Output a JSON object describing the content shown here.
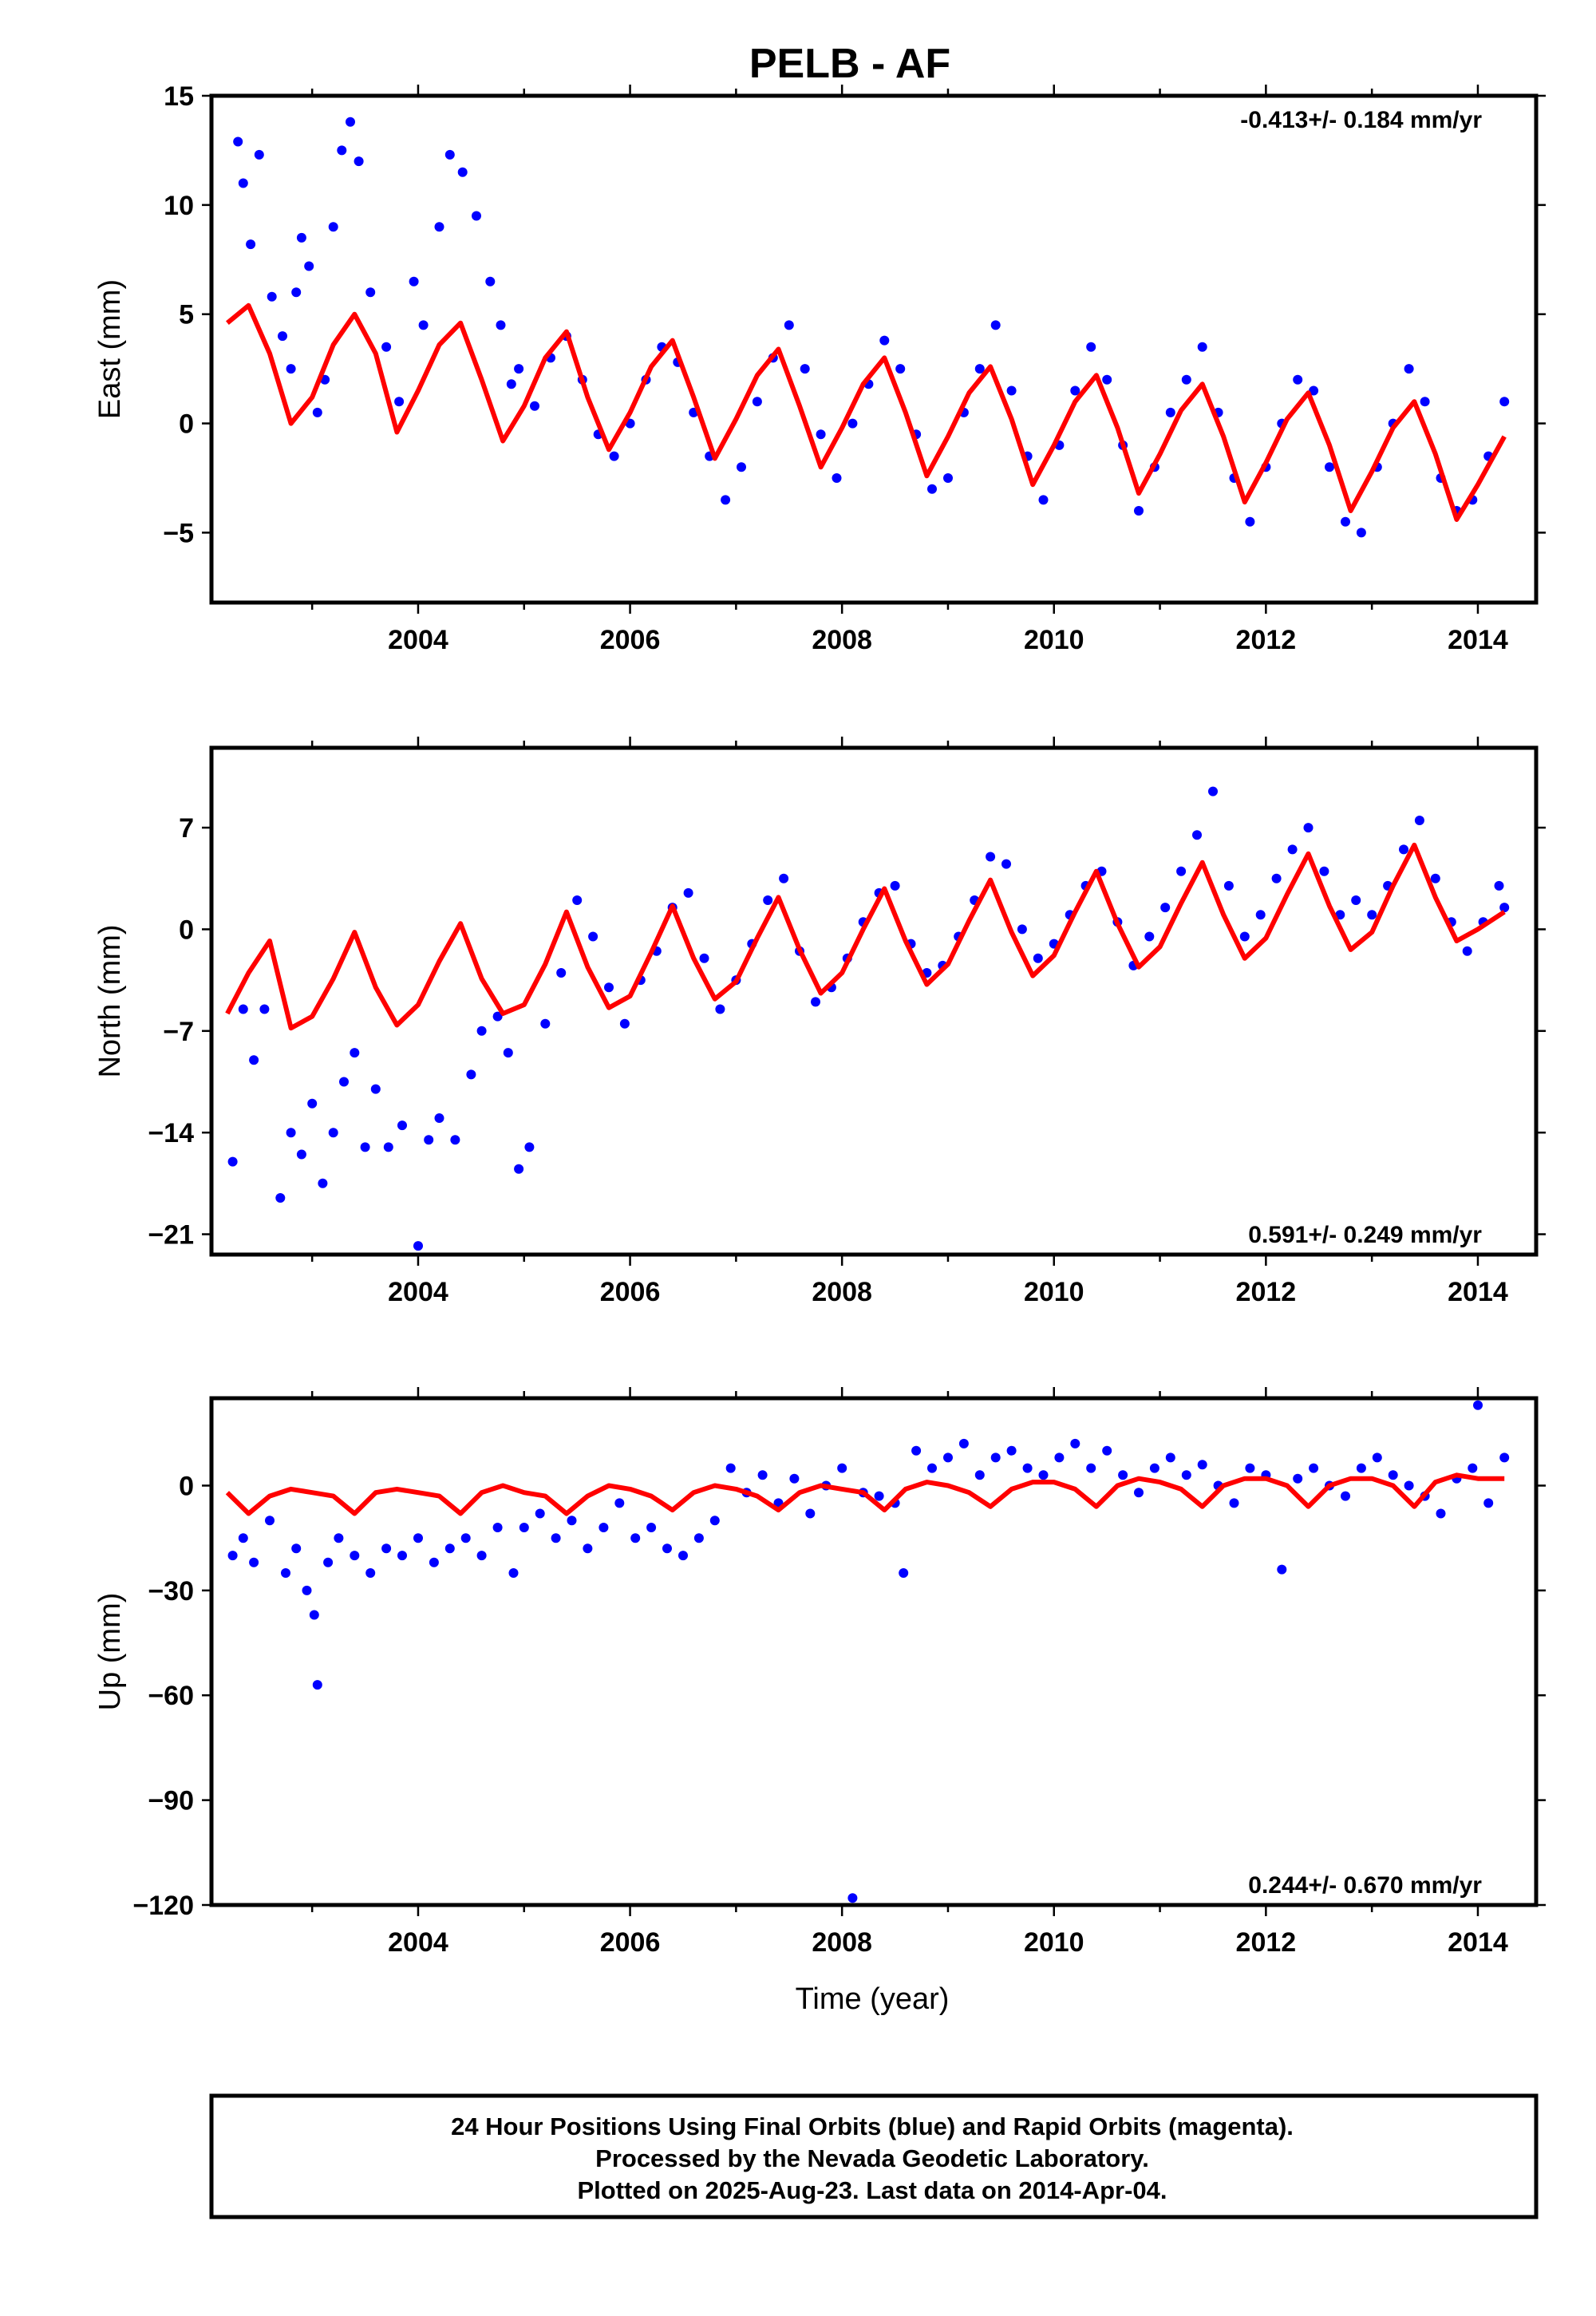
{
  "title": "PELB - AF",
  "xlabel": "Time (year)",
  "footer": {
    "lines": [
      "24 Hour Positions Using Final Orbits (blue) and Rapid Orbits (magenta).",
      "Processed by the Nevada Geodetic Laboratory.",
      "Plotted on 2025-Aug-23. Last data on 2014-Apr-04."
    ]
  },
  "colors": {
    "points": "#0000ff",
    "model": "#ff0000",
    "frame": "#000000"
  },
  "chart_data": [
    {
      "type": "scatter",
      "ylabel": "East (mm)",
      "rate_text": "-0.413+/- 0.184 mm/yr",
      "xlim": [
        2002.05,
        2014.55
      ],
      "ylim": [
        -8.2,
        15
      ],
      "xticks": [
        "2004",
        "2006",
        "2008",
        "2010",
        "2012",
        "2014"
      ],
      "yticks": [
        "-5",
        "0",
        "5",
        "10",
        "15"
      ],
      "grid": false,
      "series": [
        {
          "role": "daily positions",
          "x": [
            2002.3,
            2002.35,
            2002.42,
            2002.5,
            2002.62,
            2002.72,
            2002.8,
            2002.85,
            2002.9,
            2002.97,
            2003.05,
            2003.12,
            2003.2,
            2003.28,
            2003.36,
            2003.44,
            2003.55,
            2003.7,
            2003.82,
            2003.96,
            2004.05,
            2004.2,
            2004.3,
            2004.42,
            2004.55,
            2004.68,
            2004.78,
            2004.88,
            2004.95,
            2005.1,
            2005.25,
            2005.4,
            2005.55,
            2005.7,
            2005.85,
            2006.0,
            2006.15,
            2006.3,
            2006.45,
            2006.6,
            2006.75,
            2006.9,
            2007.05,
            2007.2,
            2007.35,
            2007.5,
            2007.65,
            2007.8,
            2007.95,
            2008.1,
            2008.25,
            2008.4,
            2008.55,
            2008.7,
            2008.85,
            2009.0,
            2009.15,
            2009.3,
            2009.45,
            2009.6,
            2009.75,
            2009.9,
            2010.05,
            2010.2,
            2010.35,
            2010.5,
            2010.65,
            2010.8,
            2010.95,
            2011.1,
            2011.25,
            2011.4,
            2011.55,
            2011.7,
            2011.85,
            2012.0,
            2012.15,
            2012.3,
            2012.45,
            2012.6,
            2012.75,
            2012.9,
            2013.05,
            2013.2,
            2013.35,
            2013.5,
            2013.65,
            2013.8,
            2013.95,
            2014.1,
            2014.25
          ],
          "y": [
            12.9,
            11.0,
            8.2,
            12.3,
            5.8,
            4.0,
            2.5,
            6.0,
            8.5,
            7.2,
            0.5,
            2.0,
            9.0,
            12.5,
            13.8,
            12.0,
            6.0,
            3.5,
            1.0,
            6.5,
            4.5,
            9.0,
            12.3,
            11.5,
            9.5,
            6.5,
            4.5,
            1.8,
            2.5,
            0.8,
            3.0,
            4.0,
            2.0,
            -0.5,
            -1.5,
            0.0,
            2.0,
            3.5,
            2.8,
            0.5,
            -1.5,
            -3.5,
            -2.0,
            1.0,
            3.0,
            4.5,
            2.5,
            -0.5,
            -2.5,
            0.0,
            1.8,
            3.8,
            2.5,
            -0.5,
            -3.0,
            -2.5,
            0.5,
            2.5,
            4.5,
            1.5,
            -1.5,
            -3.5,
            -1.0,
            1.5,
            3.5,
            2.0,
            -1.0,
            -4.0,
            -2.0,
            0.5,
            2.0,
            3.5,
            0.5,
            -2.5,
            -4.5,
            -2.0,
            0.0,
            2.0,
            1.5,
            -2.0,
            -4.5,
            -5.0,
            -2.0,
            0.0,
            2.5,
            1.0,
            -2.5,
            -4.0,
            -3.5,
            -1.5,
            1.0
          ]
        },
        {
          "role": "model",
          "x": [
            2002.2,
            2002.4,
            2002.6,
            2002.8,
            2003.0,
            2003.2,
            2003.4,
            2003.6,
            2003.8,
            2004.0,
            2004.2,
            2004.4,
            2004.6,
            2004.8,
            2005.0,
            2005.2,
            2005.4,
            2005.6,
            2005.8,
            2006.0,
            2006.2,
            2006.4,
            2006.6,
            2006.8,
            2007.0,
            2007.2,
            2007.4,
            2007.6,
            2007.8,
            2008.0,
            2008.2,
            2008.4,
            2008.6,
            2008.8,
            2009.0,
            2009.2,
            2009.4,
            2009.6,
            2009.8,
            2010.0,
            2010.2,
            2010.4,
            2010.6,
            2010.8,
            2011.0,
            2011.2,
            2011.4,
            2011.6,
            2011.8,
            2012.0,
            2012.2,
            2012.4,
            2012.6,
            2012.8,
            2013.0,
            2013.2,
            2013.4,
            2013.6,
            2013.8,
            2014.0,
            2014.25
          ],
          "y": [
            4.6,
            5.4,
            3.2,
            0.0,
            1.2,
            3.6,
            5.0,
            3.2,
            -0.4,
            1.5,
            3.6,
            4.6,
            2.0,
            -0.8,
            0.8,
            3.0,
            4.2,
            1.2,
            -1.2,
            0.5,
            2.6,
            3.8,
            1.2,
            -1.6,
            0.2,
            2.2,
            3.4,
            0.8,
            -2.0,
            -0.2,
            1.8,
            3.0,
            0.5,
            -2.4,
            -0.6,
            1.4,
            2.6,
            0.2,
            -2.8,
            -1.0,
            1.0,
            2.2,
            -0.2,
            -3.2,
            -1.4,
            0.6,
            1.8,
            -0.6,
            -3.6,
            -1.8,
            0.2,
            1.4,
            -1.0,
            -4.0,
            -2.2,
            -0.2,
            1.0,
            -1.4,
            -4.4,
            -2.8,
            -0.6
          ]
        }
      ]
    },
    {
      "type": "scatter",
      "ylabel": "North (mm)",
      "rate_text": "0.591+/- 0.249 mm/yr",
      "xlim": [
        2002.05,
        2014.55
      ],
      "ylim": [
        -22.4,
        12.5
      ],
      "xticks": [
        "2004",
        "2006",
        "2008",
        "2010",
        "2012",
        "2014"
      ],
      "yticks": [
        "-21",
        "-14",
        "-7",
        "0",
        "7"
      ],
      "grid": false,
      "series": [
        {
          "role": "daily positions",
          "x": [
            2002.25,
            2002.35,
            2002.45,
            2002.55,
            2002.7,
            2002.8,
            2002.9,
            2003.0,
            2003.1,
            2003.2,
            2003.3,
            2003.4,
            2003.5,
            2003.6,
            2003.72,
            2003.85,
            2004.0,
            2004.1,
            2004.2,
            2004.35,
            2004.5,
            2004.6,
            2004.75,
            2004.85,
            2004.95,
            2005.05,
            2005.2,
            2005.35,
            2005.5,
            2005.65,
            2005.8,
            2005.95,
            2006.1,
            2006.25,
            2006.4,
            2006.55,
            2006.7,
            2006.85,
            2007.0,
            2007.15,
            2007.3,
            2007.45,
            2007.6,
            2007.75,
            2007.9,
            2008.05,
            2008.2,
            2008.35,
            2008.5,
            2008.65,
            2008.8,
            2008.95,
            2009.1,
            2009.25,
            2009.4,
            2009.55,
            2009.7,
            2009.85,
            2010.0,
            2010.15,
            2010.3,
            2010.45,
            2010.6,
            2010.75,
            2010.9,
            2011.05,
            2011.2,
            2011.35,
            2011.5,
            2011.65,
            2011.8,
            2011.95,
            2012.1,
            2012.25,
            2012.4,
            2012.55,
            2012.7,
            2012.85,
            2013.0,
            2013.15,
            2013.3,
            2013.45,
            2013.6,
            2013.75,
            2013.9,
            2014.05,
            2014.2,
            2014.25
          ],
          "y": [
            -16.0,
            -5.5,
            -9.0,
            -5.5,
            -18.5,
            -14.0,
            -15.5,
            -12.0,
            -17.5,
            -14.0,
            -10.5,
            -8.5,
            -15.0,
            -11.0,
            -15.0,
            -13.5,
            -21.8,
            -14.5,
            -13.0,
            -14.5,
            -10.0,
            -7.0,
            -6.0,
            -8.5,
            -16.5,
            -15.0,
            -6.5,
            -3.0,
            2.0,
            -0.5,
            -4.0,
            -6.5,
            -3.5,
            -1.5,
            1.5,
            2.5,
            -2.0,
            -5.5,
            -3.5,
            -1.0,
            2.0,
            3.5,
            -1.5,
            -5.0,
            -4.0,
            -2.0,
            0.5,
            2.5,
            3.0,
            -1.0,
            -3.0,
            -2.5,
            -0.5,
            2.0,
            5.0,
            4.5,
            0.0,
            -2.0,
            -1.0,
            1.0,
            3.0,
            4.0,
            0.5,
            -2.5,
            -0.5,
            1.5,
            4.0,
            6.5,
            9.5,
            3.0,
            -0.5,
            1.0,
            3.5,
            5.5,
            7.0,
            4.0,
            1.0,
            2.0,
            1.0,
            3.0,
            5.5,
            7.5,
            3.5,
            0.5,
            -1.5,
            0.5,
            3.0,
            1.5
          ]
        },
        {
          "role": "model",
          "x": [
            2002.2,
            2002.4,
            2002.6,
            2002.8,
            2003.0,
            2003.2,
            2003.4,
            2003.6,
            2003.8,
            2004.0,
            2004.2,
            2004.4,
            2004.6,
            2004.8,
            2005.0,
            2005.2,
            2005.4,
            2005.6,
            2005.8,
            2006.0,
            2006.2,
            2006.4,
            2006.6,
            2006.8,
            2007.0,
            2007.2,
            2007.4,
            2007.6,
            2007.8,
            2008.0,
            2008.2,
            2008.4,
            2008.6,
            2008.8,
            2009.0,
            2009.2,
            2009.4,
            2009.6,
            2009.8,
            2010.0,
            2010.2,
            2010.4,
            2010.6,
            2010.8,
            2011.0,
            2011.2,
            2011.4,
            2011.6,
            2011.8,
            2012.0,
            2012.2,
            2012.4,
            2012.6,
            2012.8,
            2013.0,
            2013.2,
            2013.4,
            2013.6,
            2013.8,
            2014.0,
            2014.25
          ],
          "y": [
            -5.8,
            -3.0,
            -0.8,
            -6.8,
            -6.0,
            -3.4,
            -0.2,
            -4.0,
            -6.6,
            -5.2,
            -2.2,
            0.4,
            -3.4,
            -5.8,
            -5.2,
            -2.4,
            1.2,
            -2.6,
            -5.4,
            -4.6,
            -1.6,
            1.6,
            -2.0,
            -4.8,
            -3.6,
            -0.6,
            2.2,
            -1.4,
            -4.4,
            -3.0,
            0.0,
            2.8,
            -0.8,
            -3.8,
            -2.4,
            0.6,
            3.4,
            -0.2,
            -3.2,
            -1.8,
            1.2,
            4.0,
            0.4,
            -2.6,
            -1.2,
            1.8,
            4.6,
            1.0,
            -2.0,
            -0.6,
            2.4,
            5.2,
            1.6,
            -1.4,
            -0.2,
            3.0,
            5.8,
            2.2,
            -0.8,
            0.0,
            1.2
          ]
        }
      ]
    },
    {
      "type": "scatter",
      "ylabel": "Up (mm)",
      "rate_text": "0.244+/- 0.670 mm/yr",
      "xlim": [
        2002.05,
        2014.55
      ],
      "ylim": [
        -120,
        25
      ],
      "xticks": [
        "2004",
        "2006",
        "2008",
        "2010",
        "2012",
        "2014"
      ],
      "yticks": [
        "-120",
        "-90",
        "-60",
        "-30",
        "0"
      ],
      "grid": false,
      "series": [
        {
          "role": "daily positions",
          "x": [
            2002.25,
            2002.35,
            2002.45,
            2002.6,
            2002.75,
            2002.85,
            2002.95,
            2003.02,
            2003.05,
            2003.15,
            2003.25,
            2003.4,
            2003.55,
            2003.7,
            2003.85,
            2004.0,
            2004.15,
            2004.3,
            2004.45,
            2004.6,
            2004.75,
            2004.9,
            2005.0,
            2005.15,
            2005.3,
            2005.45,
            2005.6,
            2005.75,
            2005.9,
            2006.05,
            2006.2,
            2006.35,
            2006.5,
            2006.65,
            2006.8,
            2006.95,
            2007.1,
            2007.25,
            2007.4,
            2007.55,
            2007.7,
            2007.85,
            2008.0,
            2008.1,
            2008.2,
            2008.35,
            2008.5,
            2008.58,
            2008.7,
            2008.85,
            2009.0,
            2009.15,
            2009.3,
            2009.45,
            2009.6,
            2009.75,
            2009.9,
            2010.05,
            2010.2,
            2010.35,
            2010.5,
            2010.65,
            2010.8,
            2010.95,
            2011.1,
            2011.25,
            2011.4,
            2011.55,
            2011.7,
            2011.85,
            2012.0,
            2012.15,
            2012.3,
            2012.45,
            2012.6,
            2012.75,
            2012.9,
            2013.05,
            2013.2,
            2013.35,
            2013.5,
            2013.65,
            2013.8,
            2013.95,
            2014.0,
            2014.1,
            2014.25
          ],
          "y": [
            -20,
            -15,
            -22,
            -10,
            -25,
            -18,
            -30,
            -37,
            -57,
            -22,
            -15,
            -20,
            -25,
            -18,
            -20,
            -15,
            -22,
            -18,
            -15,
            -20,
            -12,
            -25,
            -12,
            -8,
            -15,
            -10,
            -18,
            -12,
            -5,
            -15,
            -12,
            -18,
            -20,
            -15,
            -10,
            5,
            -2,
            3,
            -5,
            2,
            -8,
            0,
            5,
            -118,
            -2,
            -3,
            -5,
            -25,
            10,
            5,
            8,
            12,
            3,
            8,
            10,
            5,
            3,
            8,
            12,
            5,
            10,
            3,
            -2,
            5,
            8,
            3,
            6,
            0,
            -5,
            5,
            3,
            -24,
            2,
            5,
            0,
            -3,
            5,
            8,
            3,
            0,
            -3,
            -8,
            2,
            5,
            23,
            -5,
            8
          ]
        },
        {
          "role": "model",
          "x": [
            2002.2,
            2002.4,
            2002.6,
            2002.8,
            2003.0,
            2003.2,
            2003.4,
            2003.6,
            2003.8,
            2004.0,
            2004.2,
            2004.4,
            2004.6,
            2004.8,
            2005.0,
            2005.2,
            2005.4,
            2005.6,
            2005.8,
            2006.0,
            2006.2,
            2006.4,
            2006.6,
            2006.8,
            2007.0,
            2007.2,
            2007.4,
            2007.6,
            2007.8,
            2008.0,
            2008.2,
            2008.4,
            2008.6,
            2008.8,
            2009.0,
            2009.2,
            2009.4,
            2009.6,
            2009.8,
            2010.0,
            2010.2,
            2010.4,
            2010.6,
            2010.8,
            2011.0,
            2011.2,
            2011.4,
            2011.6,
            2011.8,
            2012.0,
            2012.2,
            2012.4,
            2012.6,
            2012.8,
            2013.0,
            2013.2,
            2013.4,
            2013.6,
            2013.8,
            2014.0,
            2014.25
          ],
          "y": [
            -2,
            -8,
            -3,
            -1,
            -2,
            -3,
            -8,
            -2,
            -1,
            -2,
            -3,
            -8,
            -2,
            0,
            -2,
            -3,
            -8,
            -3,
            0,
            -1,
            -3,
            -7,
            -2,
            0,
            -1,
            -3,
            -7,
            -2,
            0,
            -1,
            -2,
            -7,
            -1,
            1,
            0,
            -2,
            -6,
            -1,
            1,
            1,
            -1,
            -6,
            0,
            2,
            1,
            -1,
            -6,
            0,
            2,
            2,
            0,
            -6,
            0,
            2,
            2,
            0,
            -6,
            1,
            3,
            2,
            2
          ]
        }
      ]
    }
  ]
}
